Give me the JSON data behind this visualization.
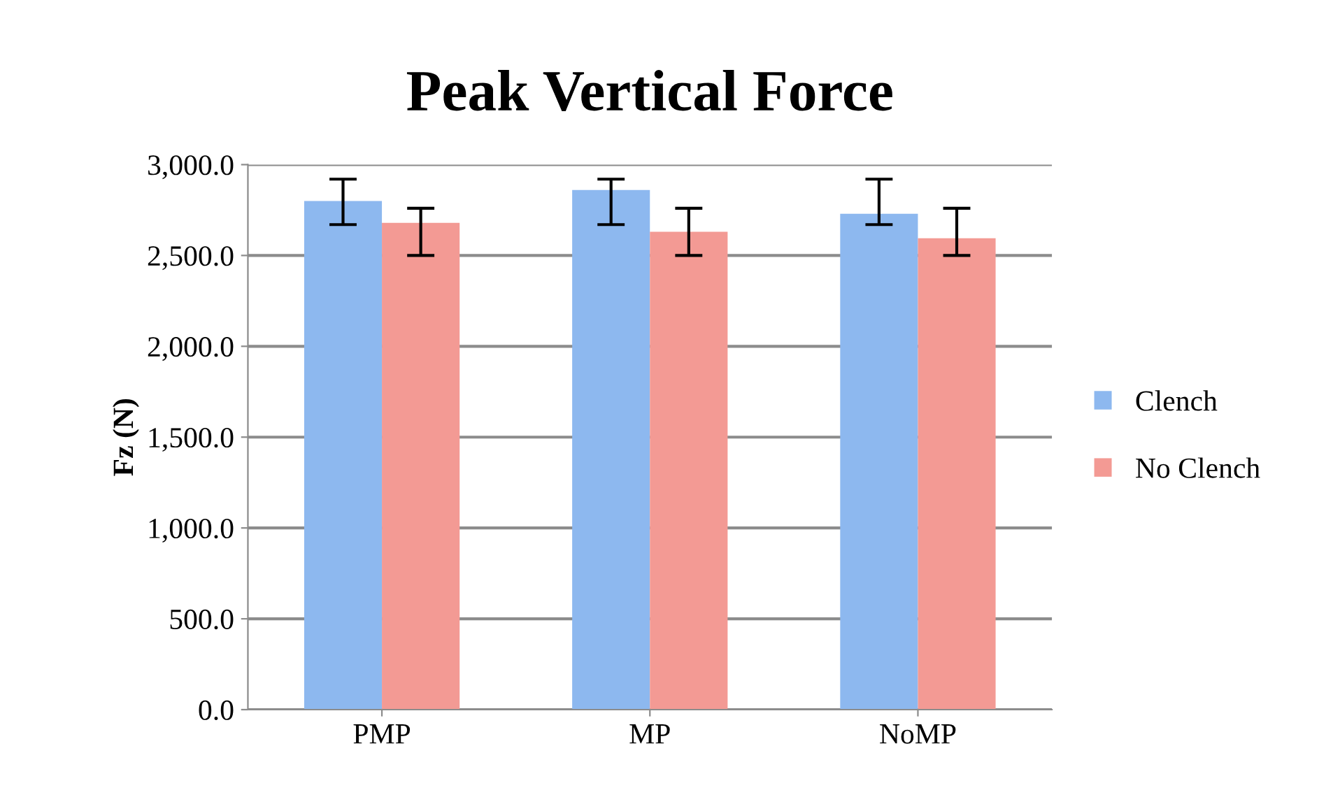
{
  "chart_data": {
    "type": "bar",
    "title": "Peak Vertical Force",
    "ylabel": "Fz (N)",
    "categories": [
      "PMP",
      "MP",
      "NoMP"
    ],
    "series": [
      {
        "name": "Clench",
        "color": "#8db8ef",
        "values": [
          2800,
          2860,
          2730
        ],
        "errors": [
          [
            2670,
            2920
          ],
          [
            2670,
            2920
          ],
          [
            2670,
            2920
          ]
        ]
      },
      {
        "name": "No Clench",
        "color": "#f39a94",
        "values": [
          2680,
          2630,
          2595
        ],
        "errors": [
          [
            2500,
            2760
          ],
          [
            2500,
            2760
          ],
          [
            2500,
            2760
          ]
        ]
      }
    ],
    "ylim": [
      0,
      3000
    ],
    "yticks": [
      {
        "value": 0,
        "label": "0.0"
      },
      {
        "value": 500,
        "label": "500.0"
      },
      {
        "value": 1000,
        "label": "1,000.0"
      },
      {
        "value": 1500,
        "label": "1,500.0"
      },
      {
        "value": 2000,
        "label": "2,000.0"
      },
      {
        "value": 2500,
        "label": "2,500.0"
      },
      {
        "value": 3000,
        "label": "3,000.0"
      }
    ],
    "grid": "y",
    "legend": "right"
  }
}
